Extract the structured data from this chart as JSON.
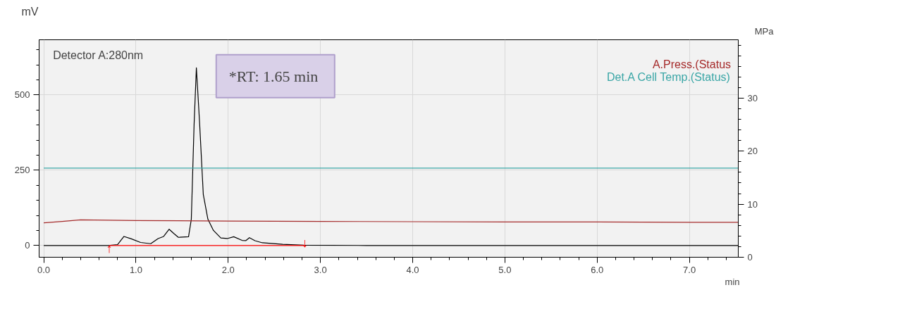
{
  "chart_data": {
    "type": "line",
    "xlabel": "min",
    "ylabel": "mV",
    "y2label": "MPa",
    "xlim": [
      -0.05,
      7.53
    ],
    "ylim": [
      -39,
      683
    ],
    "y2lim": [
      0,
      41
    ],
    "xticks": [
      {
        "value": 0,
        "label": "0.0"
      },
      {
        "value": 1,
        "label": "1.0"
      },
      {
        "value": 2,
        "label": "2.0"
      },
      {
        "value": 3,
        "label": "3.0"
      },
      {
        "value": 4,
        "label": "4.0"
      },
      {
        "value": 5,
        "label": "5.0"
      },
      {
        "value": 6,
        "label": "6.0"
      },
      {
        "value": 7,
        "label": "7.0"
      }
    ],
    "yticks": [
      0,
      250,
      500
    ],
    "y2ticks": [
      0,
      10,
      20,
      30
    ],
    "grid": true,
    "series": [
      {
        "color": "#000000",
        "x": [
          0,
          0.7,
          0.8,
          0.87,
          0.95,
          1.05,
          1.16,
          1.24,
          1.3,
          1.36,
          1.41,
          1.46,
          1.57,
          1.6,
          1.63,
          1.655,
          1.69,
          1.73,
          1.78,
          1.84,
          1.92,
          1.99,
          2.06,
          2.15,
          2.19,
          2.23,
          2.29,
          2.37,
          2.59,
          2.82,
          3.5,
          7.53
        ],
        "values": [
          0,
          0,
          3,
          30,
          22,
          10,
          6,
          23,
          30,
          54,
          40,
          27,
          29,
          87,
          400,
          590,
          406,
          169,
          87,
          50,
          25,
          23,
          29,
          17,
          16,
          26,
          16,
          9,
          4,
          1,
          0,
          0
        ]
      },
      {
        "color": "#ff0000",
        "x": [
          0.71,
          2.83
        ],
        "values": [
          0,
          0
        ]
      },
      {
        "name": "A.Press.(Status",
        "color": "#a52a2a",
        "x": [
          0,
          0.2,
          0.4,
          0.7,
          1.0,
          2.0,
          3.0,
          4.0,
          5.0,
          6.0,
          7.0,
          7.53
        ],
        "values": [
          75,
          80,
          85,
          84,
          83,
          81,
          80,
          79,
          78,
          78,
          77,
          77
        ]
      },
      {
        "name": "Det.A Cell Temp.(Status)",
        "color": "#3aa6a6",
        "x": [
          0,
          7.53
        ],
        "values": [
          257,
          257
        ]
      }
    ],
    "annotations": [
      "Detector A:280nm",
      {
        "text": "*RT:  1.65 min",
        "x": 1.65,
        "y": 590
      },
      {
        "text": "↑",
        "x": 0.71,
        "y": 0
      },
      {
        "text": "↓",
        "x": 2.83,
        "y": 0
      }
    ]
  }
}
